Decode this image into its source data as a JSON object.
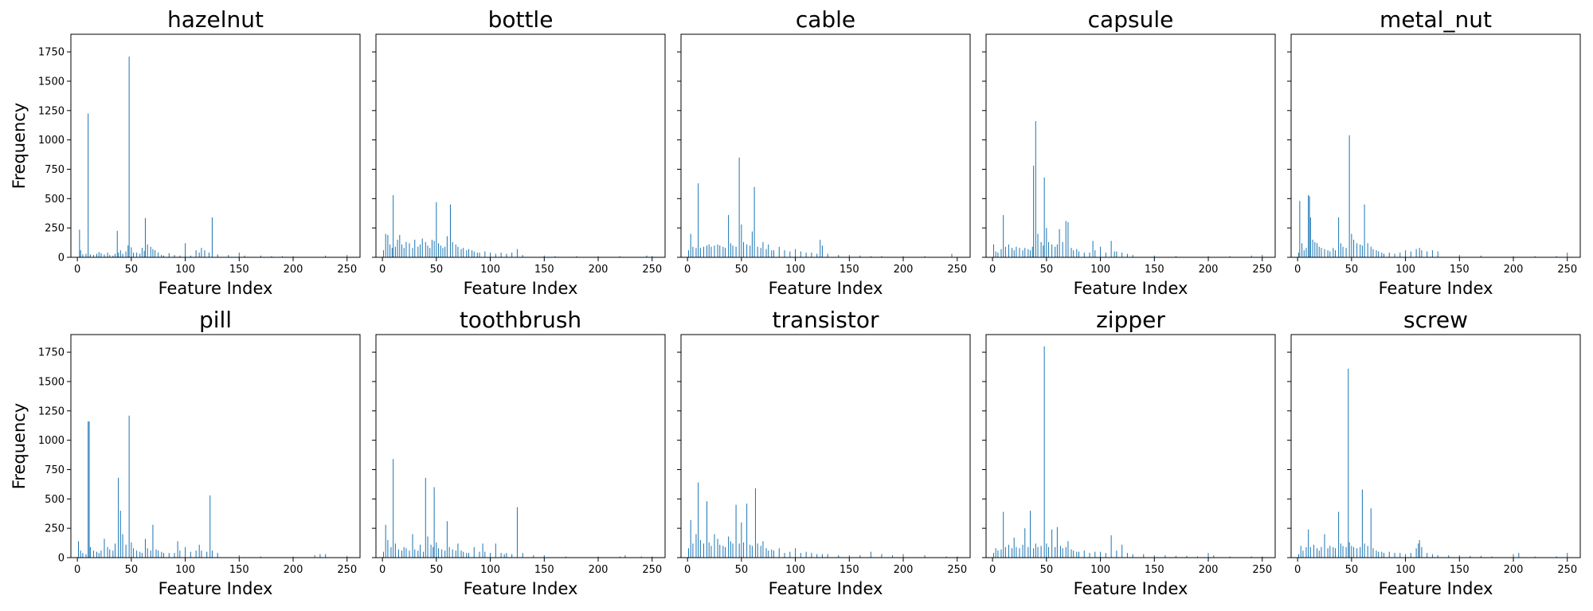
{
  "figure": {
    "xlabel": "Feature Index",
    "ylabel": "Frequency",
    "bar_color": "#1f77b4",
    "background": "#ffffff"
  },
  "chart_data": [
    {
      "type": "bar",
      "title": "hazelnut",
      "xlabel": "Feature Index",
      "ylabel": "Frequency",
      "xlim": [
        -6,
        262
      ],
      "ylim": [
        0,
        1900
      ],
      "xticks": [
        0,
        50,
        100,
        150,
        200,
        250
      ],
      "yticks": [
        0,
        250,
        500,
        750,
        1000,
        1250,
        1500,
        1750
      ],
      "x": [
        2,
        3,
        5,
        8,
        10,
        12,
        15,
        18,
        20,
        22,
        25,
        28,
        30,
        33,
        35,
        37,
        38,
        40,
        42,
        45,
        47,
        48,
        50,
        52,
        55,
        58,
        60,
        62,
        63,
        65,
        68,
        70,
        72,
        75,
        78,
        80,
        85,
        90,
        95,
        100,
        105,
        110,
        113,
        115,
        118,
        122,
        125,
        130,
        140,
        150,
        155,
        170,
        180,
        190,
        200,
        230,
        250
      ],
      "values": [
        235,
        60,
        25,
        30,
        1225,
        25,
        20,
        30,
        45,
        35,
        25,
        40,
        20,
        15,
        30,
        225,
        40,
        60,
        30,
        50,
        100,
        1710,
        85,
        40,
        40,
        30,
        80,
        55,
        335,
        110,
        90,
        70,
        60,
        40,
        20,
        15,
        35,
        20,
        15,
        120,
        15,
        60,
        40,
        80,
        60,
        40,
        340,
        25,
        20,
        40,
        15,
        15,
        10,
        10,
        10,
        15,
        20
      ]
    },
    {
      "type": "bar",
      "title": "bottle",
      "xlabel": "Feature Index",
      "ylabel": "",
      "xlim": [
        -6,
        262
      ],
      "ylim": [
        0,
        1900
      ],
      "xticks": [
        0,
        50,
        100,
        150,
        200,
        250
      ],
      "yticks": [
        0,
        250,
        500,
        750,
        1000,
        1250,
        1500,
        1750
      ],
      "x": [
        1,
        3,
        5,
        7,
        9,
        10,
        12,
        14,
        16,
        18,
        20,
        22,
        25,
        28,
        30,
        33,
        35,
        37,
        40,
        42,
        44,
        46,
        48,
        50,
        52,
        54,
        56,
        58,
        60,
        63,
        65,
        68,
        70,
        73,
        75,
        78,
        80,
        83,
        85,
        88,
        90,
        95,
        100,
        105,
        110,
        115,
        120,
        125,
        130,
        150,
        160,
        180,
        200,
        220,
        245,
        250
      ],
      "values": [
        60,
        200,
        190,
        110,
        80,
        530,
        90,
        150,
        190,
        110,
        80,
        130,
        120,
        80,
        150,
        90,
        110,
        160,
        130,
        100,
        80,
        150,
        140,
        470,
        120,
        100,
        80,
        90,
        180,
        450,
        130,
        110,
        90,
        70,
        80,
        60,
        70,
        60,
        50,
        40,
        40,
        50,
        40,
        30,
        40,
        30,
        40,
        70,
        20,
        15,
        10,
        10,
        10,
        10,
        15,
        10
      ]
    },
    {
      "type": "bar",
      "title": "cable",
      "xlabel": "Feature Index",
      "ylabel": "",
      "xlim": [
        -6,
        262
      ],
      "ylim": [
        0,
        1900
      ],
      "xticks": [
        0,
        50,
        100,
        150,
        200,
        250
      ],
      "yticks": [
        0,
        250,
        500,
        750,
        1000,
        1250,
        1500,
        1750
      ],
      "x": [
        1,
        3,
        5,
        8,
        10,
        12,
        15,
        18,
        20,
        22,
        25,
        28,
        30,
        33,
        35,
        38,
        40,
        42,
        45,
        48,
        50,
        52,
        55,
        58,
        60,
        62,
        65,
        68,
        70,
        73,
        75,
        78,
        80,
        85,
        90,
        95,
        100,
        105,
        110,
        115,
        120,
        123,
        125,
        130,
        140,
        150,
        160,
        170,
        180,
        200,
        220,
        245
      ],
      "values": [
        60,
        200,
        90,
        80,
        630,
        80,
        90,
        100,
        110,
        90,
        100,
        110,
        100,
        90,
        80,
        360,
        120,
        100,
        90,
        850,
        280,
        130,
        110,
        100,
        220,
        600,
        90,
        80,
        130,
        70,
        110,
        60,
        60,
        90,
        60,
        50,
        70,
        50,
        40,
        40,
        30,
        150,
        100,
        30,
        20,
        20,
        15,
        10,
        10,
        10,
        10,
        30
      ]
    },
    {
      "type": "bar",
      "title": "capsule",
      "xlabel": "Feature Index",
      "ylabel": "",
      "xlim": [
        -6,
        262
      ],
      "ylim": [
        0,
        1900
      ],
      "xticks": [
        0,
        50,
        100,
        150,
        200,
        250
      ],
      "yticks": [
        0,
        250,
        500,
        750,
        1000,
        1250,
        1500,
        1750
      ],
      "x": [
        1,
        3,
        5,
        8,
        10,
        12,
        15,
        18,
        20,
        22,
        25,
        28,
        30,
        33,
        35,
        37,
        38,
        40,
        42,
        45,
        47,
        48,
        50,
        52,
        55,
        58,
        60,
        62,
        65,
        68,
        70,
        73,
        75,
        78,
        80,
        85,
        90,
        93,
        95,
        100,
        105,
        110,
        113,
        115,
        120,
        125,
        130,
        150,
        170,
        200,
        220,
        240,
        250
      ],
      "values": [
        110,
        50,
        40,
        70,
        360,
        90,
        110,
        80,
        60,
        90,
        80,
        60,
        80,
        70,
        60,
        90,
        780,
        1160,
        200,
        130,
        100,
        680,
        250,
        130,
        110,
        90,
        110,
        240,
        130,
        310,
        300,
        80,
        60,
        70,
        50,
        40,
        40,
        140,
        60,
        90,
        40,
        140,
        50,
        50,
        40,
        30,
        20,
        15,
        10,
        10,
        10,
        15,
        20
      ]
    },
    {
      "type": "bar",
      "title": "metal_nut",
      "xlabel": "Feature Index",
      "ylabel": "",
      "xlim": [
        -6,
        262
      ],
      "ylim": [
        0,
        1900
      ],
      "xticks": [
        0,
        50,
        100,
        150,
        200,
        250
      ],
      "yticks": [
        0,
        250,
        500,
        750,
        1000,
        1250,
        1500,
        1750
      ],
      "x": [
        1,
        2,
        4,
        6,
        8,
        10,
        11,
        12,
        14,
        16,
        18,
        20,
        22,
        25,
        28,
        30,
        33,
        35,
        38,
        40,
        42,
        45,
        48,
        50,
        52,
        55,
        58,
        60,
        62,
        65,
        68,
        70,
        73,
        75,
        78,
        80,
        85,
        90,
        95,
        100,
        105,
        110,
        113,
        115,
        120,
        125,
        130,
        150,
        170,
        200,
        220,
        240,
        250
      ],
      "values": [
        40,
        480,
        120,
        60,
        80,
        530,
        520,
        340,
        150,
        130,
        120,
        90,
        80,
        70,
        60,
        50,
        80,
        60,
        340,
        120,
        90,
        80,
        1040,
        200,
        150,
        120,
        110,
        100,
        450,
        120,
        90,
        70,
        60,
        50,
        40,
        30,
        40,
        30,
        40,
        60,
        50,
        70,
        80,
        60,
        50,
        60,
        50,
        20,
        15,
        10,
        10,
        10,
        40
      ]
    },
    {
      "type": "bar",
      "title": "pill",
      "xlabel": "Feature Index",
      "ylabel": "Frequency",
      "xlim": [
        -6,
        262
      ],
      "ylim": [
        0,
        1900
      ],
      "xticks": [
        0,
        50,
        100,
        150,
        200,
        250
      ],
      "yticks": [
        0,
        250,
        500,
        750,
        1000,
        1250,
        1500,
        1750
      ],
      "x": [
        1,
        3,
        5,
        8,
        10,
        11,
        12,
        15,
        18,
        20,
        22,
        25,
        28,
        30,
        33,
        35,
        38,
        40,
        42,
        45,
        48,
        50,
        52,
        55,
        58,
        60,
        63,
        65,
        68,
        70,
        73,
        75,
        78,
        80,
        85,
        90,
        93,
        95,
        100,
        105,
        110,
        113,
        115,
        120,
        123,
        125,
        130,
        150,
        170,
        200,
        220,
        225,
        230,
        250
      ],
      "values": [
        140,
        60,
        40,
        30,
        1160,
        1160,
        90,
        60,
        50,
        40,
        60,
        160,
        90,
        70,
        60,
        120,
        680,
        400,
        200,
        110,
        1210,
        130,
        80,
        60,
        50,
        40,
        160,
        80,
        60,
        280,
        70,
        60,
        50,
        40,
        40,
        40,
        140,
        60,
        90,
        50,
        60,
        110,
        60,
        50,
        530,
        60,
        40,
        20,
        10,
        10,
        20,
        30,
        30,
        15
      ]
    },
    {
      "type": "bar",
      "title": "toothbrush",
      "xlabel": "Feature Index",
      "ylabel": "",
      "xlim": [
        -6,
        262
      ],
      "ylim": [
        0,
        1900
      ],
      "xticks": [
        0,
        50,
        100,
        150,
        200,
        250
      ],
      "yticks": [
        0,
        250,
        500,
        750,
        1000,
        1250,
        1500,
        1750
      ],
      "x": [
        1,
        3,
        5,
        8,
        10,
        12,
        15,
        18,
        20,
        22,
        25,
        28,
        30,
        33,
        35,
        38,
        40,
        42,
        45,
        47,
        48,
        50,
        52,
        55,
        58,
        60,
        62,
        65,
        68,
        70,
        73,
        75,
        78,
        80,
        85,
        90,
        93,
        95,
        100,
        105,
        110,
        113,
        115,
        120,
        125,
        130,
        140,
        150,
        170,
        200,
        220,
        225,
        240,
        250
      ],
      "values": [
        50,
        280,
        150,
        90,
        840,
        120,
        70,
        60,
        90,
        80,
        60,
        200,
        70,
        60,
        110,
        50,
        680,
        180,
        110,
        90,
        600,
        130,
        80,
        70,
        60,
        310,
        90,
        70,
        60,
        120,
        60,
        50,
        40,
        40,
        90,
        50,
        120,
        50,
        40,
        120,
        40,
        30,
        40,
        30,
        430,
        40,
        20,
        20,
        10,
        10,
        10,
        20,
        10,
        10
      ]
    },
    {
      "type": "bar",
      "title": "transistor",
      "xlabel": "Feature Index",
      "ylabel": "",
      "xlim": [
        -6,
        262
      ],
      "ylim": [
        0,
        1900
      ],
      "xticks": [
        0,
        50,
        100,
        150,
        200,
        250
      ],
      "yticks": [
        0,
        250,
        500,
        750,
        1000,
        1250,
        1500,
        1750
      ],
      "x": [
        1,
        3,
        5,
        8,
        10,
        12,
        15,
        18,
        20,
        22,
        25,
        28,
        30,
        33,
        35,
        38,
        40,
        42,
        45,
        48,
        50,
        52,
        55,
        58,
        60,
        63,
        65,
        68,
        70,
        73,
        75,
        78,
        80,
        85,
        90,
        95,
        100,
        105,
        110,
        115,
        120,
        125,
        130,
        140,
        150,
        160,
        170,
        180,
        190,
        200,
        220,
        240,
        250
      ],
      "values": [
        80,
        320,
        120,
        200,
        640,
        150,
        120,
        480,
        130,
        100,
        200,
        160,
        110,
        100,
        90,
        180,
        140,
        120,
        450,
        120,
        300,
        130,
        460,
        110,
        100,
        590,
        120,
        100,
        140,
        80,
        60,
        70,
        60,
        80,
        40,
        50,
        80,
        40,
        50,
        40,
        30,
        30,
        30,
        20,
        20,
        20,
        50,
        30,
        20,
        30,
        20,
        10,
        10
      ]
    },
    {
      "type": "bar",
      "title": "zipper",
      "xlabel": "Feature Index",
      "ylabel": "",
      "xlim": [
        -6,
        262
      ],
      "ylim": [
        0,
        1900
      ],
      "xticks": [
        0,
        50,
        100,
        150,
        200,
        250
      ],
      "yticks": [
        0,
        250,
        500,
        750,
        1000,
        1250,
        1500,
        1750
      ],
      "x": [
        1,
        3,
        5,
        8,
        10,
        12,
        15,
        18,
        20,
        22,
        25,
        28,
        30,
        33,
        35,
        38,
        40,
        42,
        45,
        48,
        50,
        52,
        55,
        58,
        60,
        63,
        65,
        68,
        70,
        73,
        75,
        78,
        80,
        85,
        90,
        95,
        100,
        105,
        110,
        115,
        120,
        125,
        130,
        140,
        150,
        160,
        170,
        180,
        190,
        200,
        205,
        220,
        240,
        250
      ],
      "values": [
        40,
        80,
        60,
        70,
        390,
        90,
        110,
        80,
        170,
        90,
        80,
        110,
        250,
        90,
        400,
        80,
        120,
        90,
        100,
        1800,
        120,
        90,
        240,
        90,
        260,
        100,
        80,
        90,
        140,
        70,
        60,
        50,
        50,
        60,
        40,
        50,
        50,
        40,
        190,
        60,
        110,
        40,
        30,
        30,
        20,
        20,
        15,
        15,
        10,
        40,
        20,
        10,
        10,
        10
      ]
    },
    {
      "type": "bar",
      "title": "screw",
      "xlabel": "Feature Index",
      "ylabel": "",
      "xlim": [
        -6,
        262
      ],
      "ylim": [
        0,
        1900
      ],
      "xticks": [
        0,
        50,
        100,
        150,
        200,
        250
      ],
      "yticks": [
        0,
        250,
        500,
        750,
        1000,
        1250,
        1500,
        1750
      ],
      "x": [
        1,
        3,
        5,
        8,
        10,
        12,
        15,
        18,
        20,
        22,
        25,
        28,
        30,
        33,
        35,
        38,
        40,
        42,
        45,
        47,
        48,
        50,
        52,
        55,
        58,
        60,
        62,
        65,
        68,
        70,
        73,
        75,
        78,
        80,
        85,
        90,
        95,
        100,
        105,
        110,
        112,
        113,
        115,
        120,
        125,
        130,
        140,
        150,
        160,
        170,
        180,
        200,
        205,
        220,
        240,
        250
      ],
      "values": [
        30,
        100,
        60,
        90,
        240,
        90,
        110,
        80,
        60,
        90,
        200,
        80,
        100,
        90,
        80,
        390,
        120,
        100,
        90,
        1610,
        130,
        100,
        90,
        80,
        90,
        580,
        120,
        100,
        420,
        80,
        60,
        50,
        50,
        40,
        50,
        40,
        40,
        30,
        40,
        80,
        120,
        150,
        90,
        40,
        30,
        20,
        20,
        20,
        15,
        15,
        10,
        30,
        40,
        10,
        10,
        40
      ]
    }
  ]
}
